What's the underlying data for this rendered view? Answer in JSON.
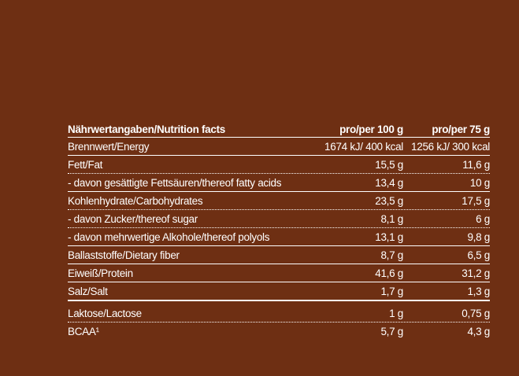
{
  "header": {
    "label": "Nährwertangaben/Nutrition facts",
    "col_100g": "pro/per 100 g",
    "col_75g": "pro/per 75 g"
  },
  "rows": [
    {
      "label": "Brennwert/Energy",
      "per100": "1674 kJ/ 400 kcal",
      "per75": "1256 kJ/ 300 kcal",
      "border": "solid"
    },
    {
      "label": "Fett/Fat",
      "per100": "15,5 g",
      "per75": "11,6 g",
      "border": "dotted"
    },
    {
      "label": "- davon gesättigte Fettsäuren/thereof fatty acids",
      "per100": "13,4 g",
      "per75": "10 g",
      "border": "solid"
    },
    {
      "label": "Kohlenhydrate/Carbohydrates",
      "per100": "23,5 g",
      "per75": "17,5 g",
      "border": "dotted"
    },
    {
      "label": "- davon Zucker/thereof sugar",
      "per100": "8,1 g",
      "per75": "6 g",
      "border": "dotted"
    },
    {
      "label": "- davon mehrwertige Alkohole/thereof polyols",
      "per100": "13,1 g",
      "per75": "9,8 g",
      "border": "solid"
    },
    {
      "label": "Ballaststoffe/Dietary fiber",
      "per100": "8,7 g",
      "per75": "6,5 g",
      "border": "solid"
    },
    {
      "label": "Eiweiß/Protein",
      "per100": "41,6 g",
      "per75": "31,2 g",
      "border": "solid"
    },
    {
      "label": "Salz/Salt",
      "per100": "1,7 g",
      "per75": "1,3 g",
      "border": "solid"
    },
    {
      "label": "Laktose/Lactose",
      "per100": "1 g",
      "per75": "0,75 g",
      "border": "dotted"
    },
    {
      "label": "BCAA¹",
      "per100": "5,7 g",
      "per75": "4,3 g",
      "border": "plain"
    }
  ],
  "colors": {
    "background": "#6e2f13",
    "text": "#ffffff"
  }
}
